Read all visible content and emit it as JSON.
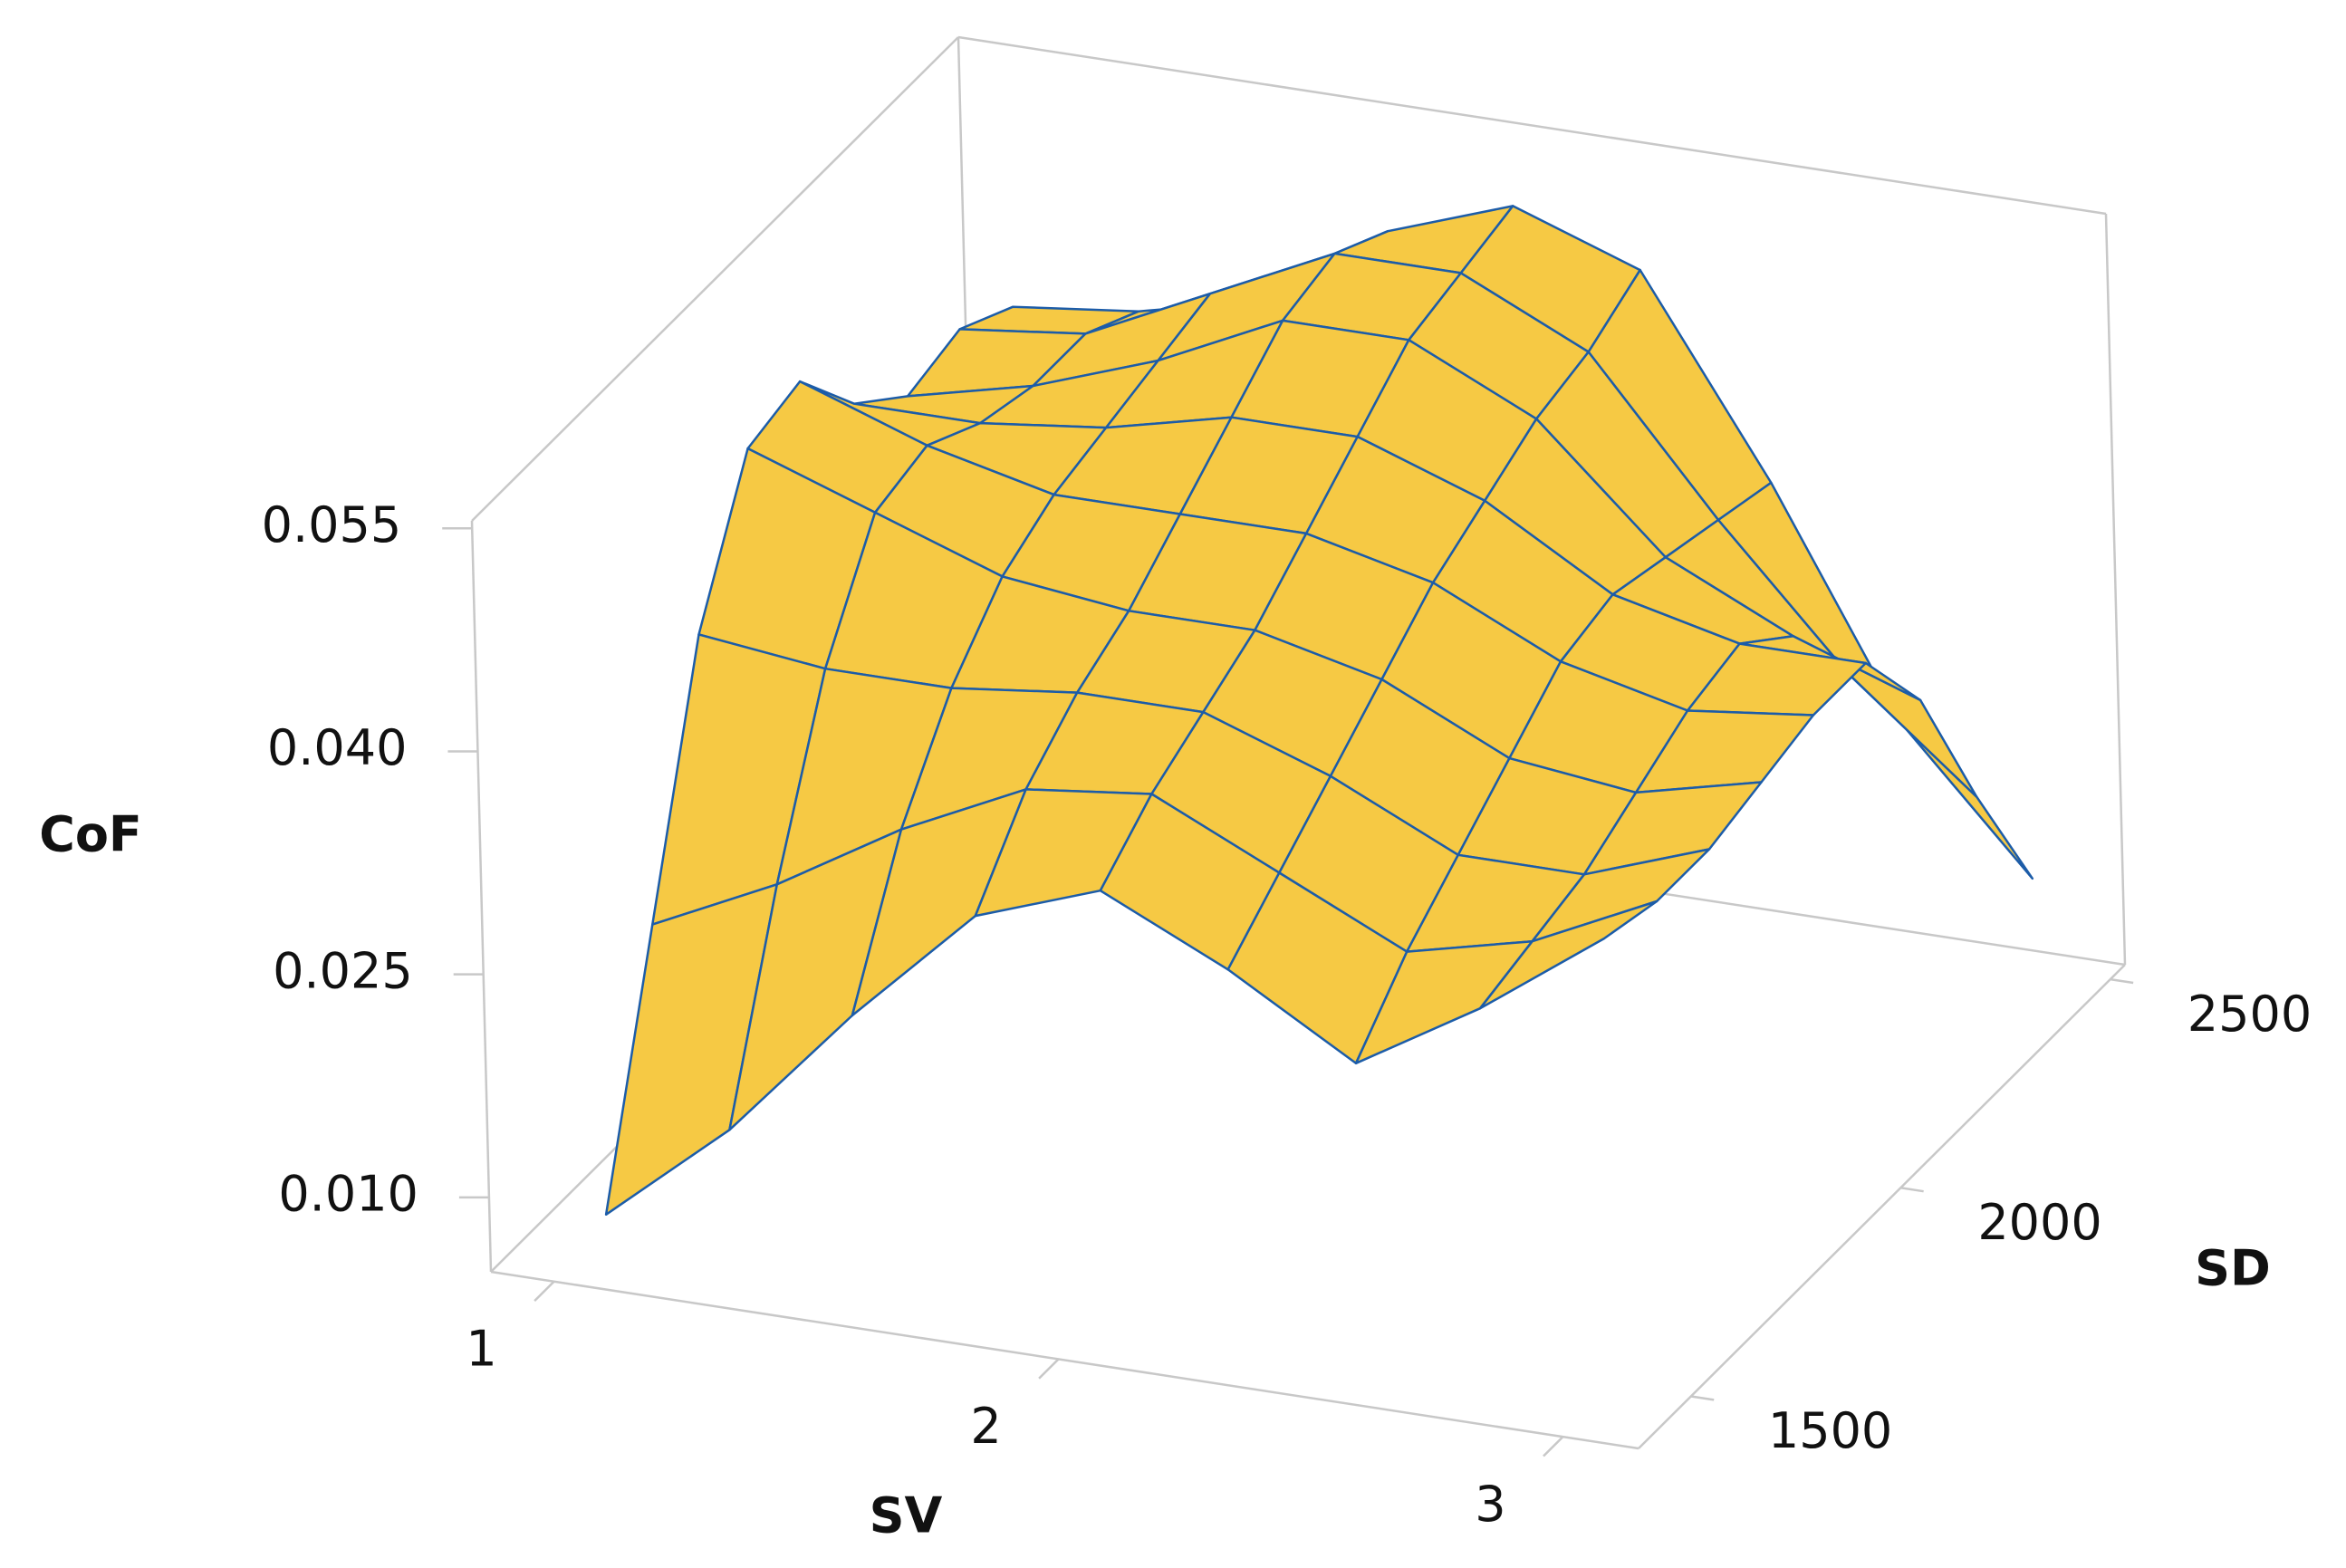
{
  "chart_data": {
    "type": "surface",
    "xlabel": "SV",
    "ylabel": "SD",
    "zlabel": "CoF",
    "x": [
      1,
      1.25,
      1.5,
      1.75,
      2,
      2.25,
      2.5,
      2.75,
      3
    ],
    "y": [
      1500,
      1625,
      1750,
      1875,
      2000,
      2125,
      2250,
      2375,
      2500
    ],
    "z": [
      [
        0.006,
        0.013,
        0.022,
        0.03,
        0.033,
        0.029,
        0.024,
        0.029,
        0.035
      ],
      [
        0.022,
        0.026,
        0.031,
        0.035,
        0.036,
        0.032,
        0.028,
        0.03,
        0.034
      ],
      [
        0.038,
        0.037,
        0.037,
        0.038,
        0.038,
        0.035,
        0.031,
        0.031,
        0.034
      ],
      [
        0.047,
        0.044,
        0.041,
        0.04,
        0.04,
        0.038,
        0.034,
        0.033,
        0.035
      ],
      [
        0.048,
        0.045,
        0.043,
        0.043,
        0.043,
        0.041,
        0.037,
        0.035,
        0.036
      ],
      [
        0.043,
        0.043,
        0.044,
        0.046,
        0.046,
        0.043,
        0.038,
        0.036,
        0.036
      ],
      [
        0.04,
        0.042,
        0.045,
        0.049,
        0.049,
        0.045,
        0.037,
        0.033,
        0.03
      ],
      [
        0.041,
        0.042,
        0.046,
        0.05,
        0.05,
        0.046,
        0.036,
        0.027,
        0.02
      ],
      [
        0.039,
        0.04,
        0.042,
        0.048,
        0.051,
        0.048,
        0.035,
        0.02,
        0.011
      ]
    ],
    "xlim": [
      0.875,
      3.15
    ],
    "ylim": [
      1375,
      2535
    ],
    "zlim": [
      0.005,
      0.0555
    ],
    "xticks": [
      1,
      2,
      3
    ],
    "yticks": [
      1500,
      2000,
      2500
    ],
    "zticks": [
      {
        "value": 0.01,
        "label": "0.010"
      },
      0.025,
      {
        "value": 0.04,
        "label": "0.040"
      },
      0.055
    ],
    "color": "#f6c944",
    "edge_color": "#1c5ca8"
  }
}
